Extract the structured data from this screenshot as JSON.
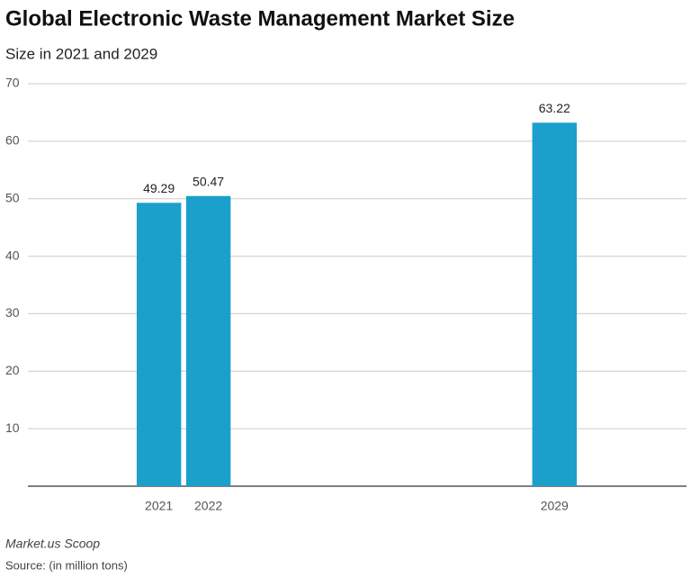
{
  "chart_data": {
    "type": "bar",
    "title": "Global Electronic Waste Management Market Size",
    "subtitle": "Size in 2021 and 2029",
    "x": [
      2021,
      2022,
      2029
    ],
    "values": [
      49.29,
      50.47,
      63.22
    ],
    "color": "#1ba0cc",
    "xlim": [
      2018.35,
      2031.67
    ],
    "xticks": [
      2021,
      2022,
      2029
    ],
    "ylim": [
      0,
      70
    ],
    "yticks": [
      10,
      20,
      30,
      40,
      50,
      60,
      70
    ],
    "grid": true,
    "credit": "Market.us Scoop",
    "source": "Source: (in million tons)"
  }
}
